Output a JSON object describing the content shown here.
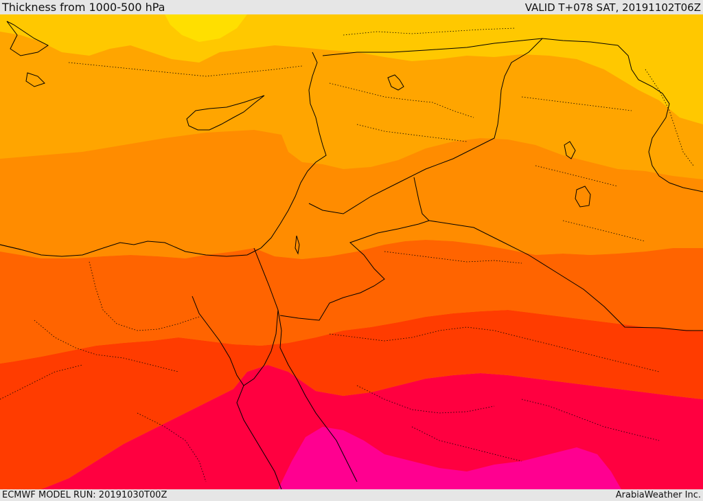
{
  "header": {
    "title": "Thickness from 1000-500 hPa",
    "valid": "VALID T+078 SAT, 20191102T06Z"
  },
  "footer": {
    "model_run": "ECMWF MODEL RUN: 20191030T00Z",
    "provider": "ArabiaWeather Inc."
  },
  "map": {
    "field": "thickness-1000-500-hpa",
    "palette": {
      "band_1": "#ffdf00",
      "band_2": "#ffc800",
      "band_3": "#ffa500",
      "band_4": "#ff8c00",
      "band_5": "#ff6400",
      "band_6": "#ff3c00",
      "band_7": "#ff0040",
      "band_8": "#ff0090"
    },
    "line_color": "#000000"
  }
}
